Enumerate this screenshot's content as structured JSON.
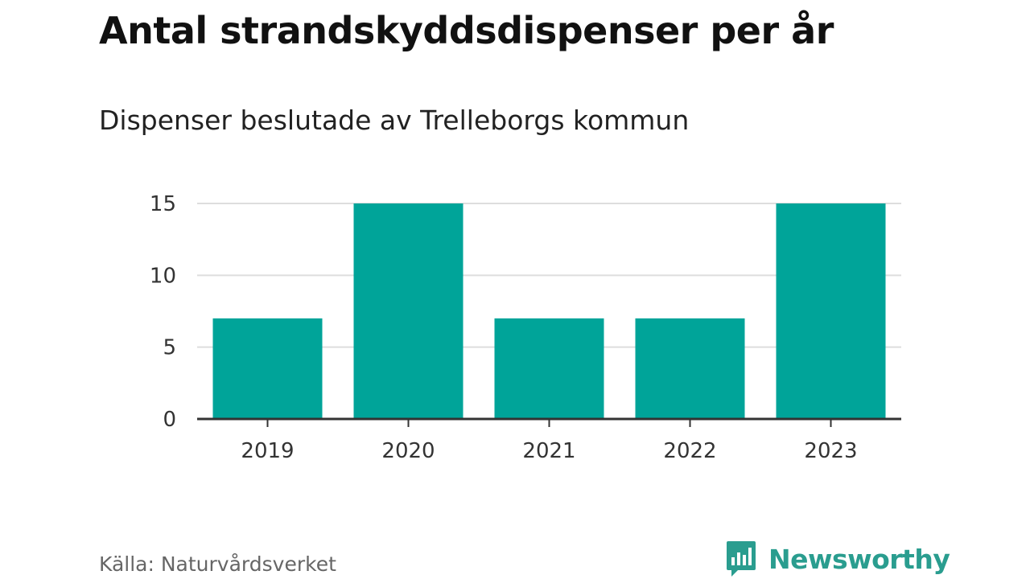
{
  "chart_data": {
    "type": "bar",
    "title": "Antal strandskyddsdispenser per år",
    "subtitle": "Dispenser beslutade av Trelleborgs kommun",
    "categories": [
      "2019",
      "2020",
      "2021",
      "2022",
      "2023"
    ],
    "values": [
      7,
      15,
      7,
      7,
      15
    ],
    "xlabel": "",
    "ylabel": "",
    "ylim": [
      0,
      15
    ],
    "yticks": [
      0,
      5,
      10,
      15
    ],
    "grid": true,
    "legend": "none",
    "bar_color": "#00a499",
    "grid_color": "#dddddd",
    "axis_color": "#333333"
  },
  "source": "Källa: Naturvårdsverket",
  "brand": {
    "name": "Newsworthy",
    "icon": "newsworthy-logo-icon",
    "color": "#2a9d8f"
  }
}
